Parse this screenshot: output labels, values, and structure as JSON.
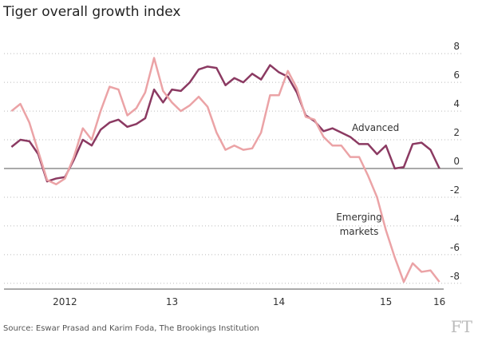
{
  "chart_data": {
    "type": "line",
    "title": "Tiger overall growth index",
    "source": "Source: Eswar Prasad and Karim Foda, The Brookings Institution",
    "logo": "FT",
    "annotations": [
      "Advanced",
      "Emerging",
      "markets"
    ],
    "x": [
      2012,
      2012.083,
      2012.167,
      2012.25,
      2012.333,
      2012.417,
      2012.5,
      2012.583,
      2012.667,
      2012.75,
      2012.833,
      2012.917,
      2013,
      2013.083,
      2013.167,
      2013.25,
      2013.333,
      2013.417,
      2013.5,
      2013.583,
      2013.667,
      2013.75,
      2013.833,
      2013.917,
      2014,
      2014.083,
      2014.167,
      2014.25,
      2014.333,
      2014.417,
      2014.5,
      2014.583,
      2014.667,
      2014.75,
      2014.833,
      2014.917,
      2015,
      2015.083,
      2015.167,
      2015.25,
      2015.333,
      2015.417,
      2015.5,
      2015.583,
      2015.667,
      2015.75,
      2015.833,
      2015.917,
      2016
    ],
    "series": [
      {
        "name": "Advanced",
        "color": "#8b3a62",
        "values": [
          1.5,
          2.0,
          1.9,
          1.0,
          -0.9,
          -0.7,
          -0.6,
          0.6,
          2.0,
          1.6,
          2.7,
          3.2,
          3.4,
          2.9,
          3.1,
          3.5,
          5.5,
          4.6,
          5.5,
          5.4,
          6.0,
          6.9,
          7.1,
          7.0,
          5.8,
          6.3,
          6.0,
          6.6,
          6.2,
          7.2,
          6.7,
          6.4,
          5.3,
          3.7,
          3.3,
          2.6,
          2.8,
          2.5,
          2.2,
          1.7,
          1.7,
          1.0,
          1.6,
          0.0,
          0.1,
          1.7,
          1.8,
          1.3,
          0.0
        ]
      },
      {
        "name": "Emerging markets",
        "color": "#eba3a6",
        "values": [
          4.0,
          4.5,
          3.2,
          1.2,
          -0.8,
          -1.1,
          -0.7,
          0.8,
          2.8,
          2.0,
          4.0,
          5.7,
          5.5,
          3.7,
          4.2,
          5.3,
          7.7,
          5.4,
          4.6,
          4.0,
          4.4,
          5.0,
          4.3,
          2.5,
          1.3,
          1.6,
          1.3,
          1.4,
          2.5,
          5.1,
          5.1,
          6.8,
          5.6,
          3.6,
          3.4,
          2.2,
          1.6,
          1.6,
          0.8,
          0.8,
          -0.5,
          -2.0,
          -4.3,
          -6.2,
          -7.9,
          -6.6,
          -7.2,
          -7.1,
          -7.9
        ]
      }
    ],
    "xlim": [
      2011.93,
      2016.04
    ],
    "xticks": [
      {
        "value": 2012.5,
        "label": "2012"
      },
      {
        "value": 2013.5,
        "label": "13"
      },
      {
        "value": 2014.5,
        "label": "14"
      },
      {
        "value": 2015.5,
        "label": "15"
      },
      {
        "value": 2016,
        "label": "16"
      }
    ],
    "ylim": [
      -8.4,
      8.9
    ],
    "yticks": [
      -8,
      -6,
      -4,
      -2,
      0,
      2,
      4,
      6,
      8
    ],
    "grid": true
  }
}
